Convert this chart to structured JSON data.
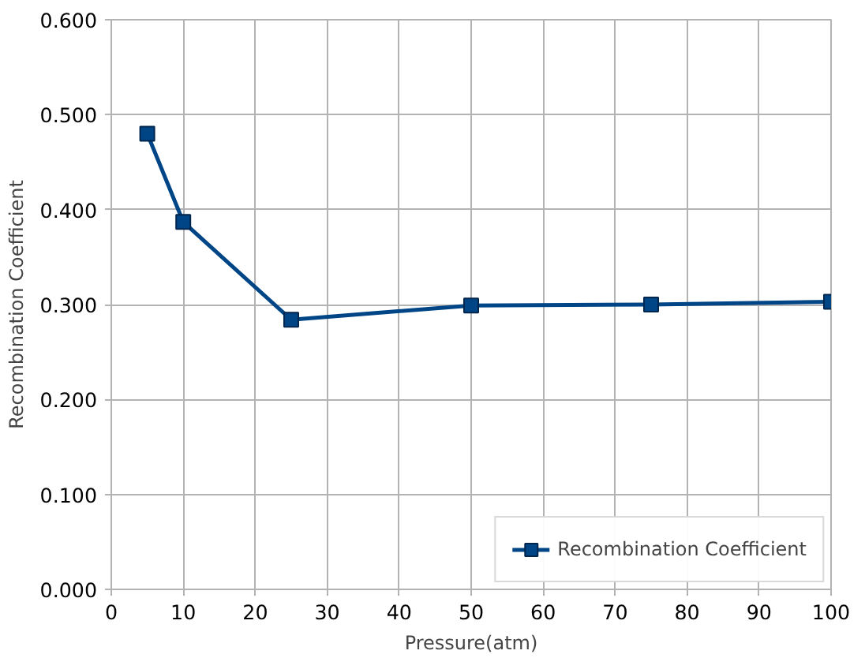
{
  "chart_data": {
    "type": "line",
    "xlabel": "Pressure(atm)",
    "ylabel": "Recombination Coefficient",
    "x": [
      5,
      10,
      25,
      50,
      75,
      100
    ],
    "series": [
      {
        "name": "Recombination Coefficient",
        "color": "#004586",
        "values": [
          0.48,
          0.387,
          0.284,
          0.299,
          0.3,
          0.303
        ]
      }
    ],
    "xlim": [
      0,
      100
    ],
    "xticks": [
      0,
      10,
      20,
      30,
      40,
      50,
      60,
      70,
      80,
      90,
      100
    ],
    "ylim": [
      0,
      0.6
    ],
    "yticks": [
      {
        "value": 0,
        "label": "0.000"
      },
      {
        "value": 0.1,
        "label": "0.100"
      },
      {
        "value": 0.2,
        "label": "0.200"
      },
      {
        "value": 0.3,
        "label": "0.300"
      },
      {
        "value": 0.4,
        "label": "0.400"
      },
      {
        "value": 0.5,
        "label": "0.500"
      },
      {
        "value": 0.6,
        "label": "0.600"
      }
    ],
    "grid": true,
    "legend": "bottom right",
    "marker": "square",
    "line_style": "solid"
  }
}
